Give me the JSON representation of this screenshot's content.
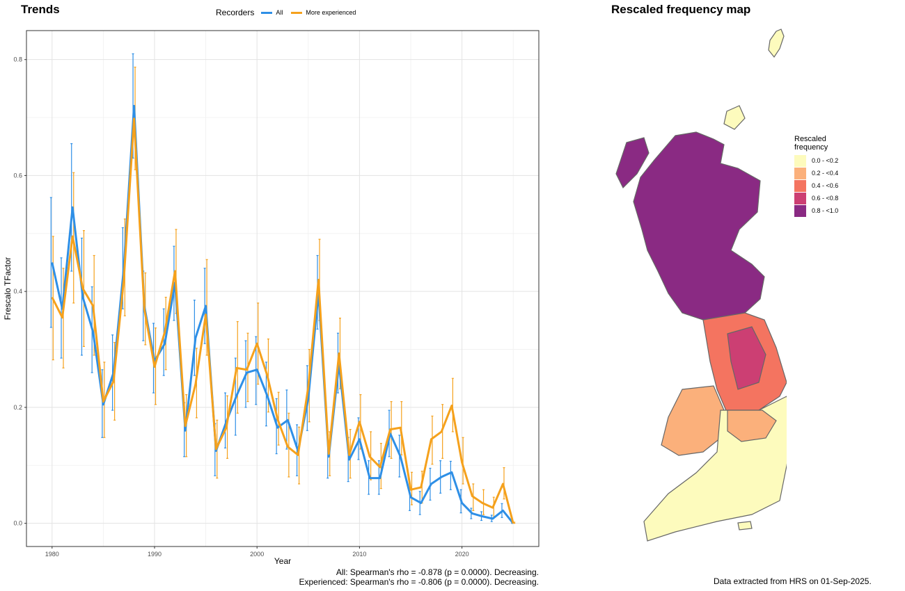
{
  "left_panel": {
    "title": "Trends",
    "legend": {
      "title": "Recorders",
      "items": [
        {
          "label": "All",
          "color": "#2e8fe6"
        },
        {
          "label": "More experienced",
          "color": "#f5a11c"
        }
      ]
    },
    "stats": {
      "line1": "All: Spearman's rho = -0.878 (p = 0.0000). Decreasing.",
      "line2": "Experienced: Spearman's rho = -0.806 (p = 0.0000). Decreasing."
    }
  },
  "right_panel": {
    "title": "Rescaled frequency map",
    "legend_title_line1": "Rescaled",
    "legend_title_line2": "frequency",
    "legend_items": [
      {
        "label": "0.0 - <0.2",
        "color": "#fdfbbd"
      },
      {
        "label": "0.2 - <0.4",
        "color": "#fbb07b"
      },
      {
        "label": "0.4 - <0.6",
        "color": "#f47460"
      },
      {
        "label": "0.6 - <0.8",
        "color": "#cc3f73"
      },
      {
        "label": "0.8 - <1.0",
        "color": "#8a2a83"
      }
    ],
    "footer": "Data extracted from HRS on 01-Sep-2025."
  },
  "chart_data": {
    "type": "line",
    "xlabel": "Year",
    "ylabel": "Frescalo TFactor",
    "xlim": [
      1977.5,
      2027.5
    ],
    "ylim": [
      -0.04,
      0.85
    ],
    "x_ticks": [
      1980,
      1990,
      2000,
      2010,
      2020
    ],
    "y_ticks": [
      0.0,
      0.2,
      0.4,
      0.6,
      0.8
    ],
    "y_tick_labels": [
      "0.0",
      "0.2",
      "0.4",
      "0.6",
      "0.8"
    ],
    "grid": true,
    "legend_position": "top",
    "x": [
      1980,
      1981,
      1982,
      1983,
      1984,
      1985,
      1986,
      1987,
      1988,
      1989,
      1990,
      1991,
      1992,
      1993,
      1994,
      1995,
      1996,
      1997,
      1998,
      1999,
      2000,
      2001,
      2002,
      2003,
      2004,
      2005,
      2006,
      2007,
      2008,
      2009,
      2010,
      2011,
      2012,
      2013,
      2014,
      2015,
      2016,
      2017,
      2018,
      2019,
      2020,
      2021,
      2022,
      2023,
      2024,
      2025
    ],
    "series": [
      {
        "name": "All",
        "color": "#2e8fe6",
        "values": [
          0.45,
          0.37,
          0.545,
          0.39,
          0.33,
          0.205,
          0.26,
          0.44,
          0.72,
          0.375,
          0.28,
          0.31,
          0.415,
          0.16,
          0.32,
          0.375,
          0.125,
          0.175,
          0.22,
          0.26,
          0.265,
          0.22,
          0.165,
          0.178,
          0.125,
          0.215,
          0.398,
          0.115,
          0.275,
          0.11,
          0.145,
          0.078,
          0.078,
          0.155,
          0.115,
          0.045,
          0.035,
          0.068,
          0.08,
          0.088,
          0.035,
          0.017,
          0.012,
          0.008,
          0.022,
          0.0
        ],
        "lower": [
          0.338,
          0.285,
          0.435,
          0.29,
          0.26,
          0.148,
          0.195,
          0.37,
          0.63,
          0.315,
          0.225,
          0.255,
          0.35,
          0.115,
          0.255,
          0.31,
          0.082,
          0.13,
          0.152,
          0.2,
          0.205,
          0.168,
          0.12,
          0.128,
          0.082,
          0.16,
          0.335,
          0.078,
          0.225,
          0.072,
          0.11,
          0.05,
          0.05,
          0.115,
          0.08,
          0.022,
          0.015,
          0.04,
          0.052,
          0.058,
          0.018,
          0.008,
          0.005,
          0.003,
          0.01,
          0.0
        ],
        "upper": [
          0.562,
          0.458,
          0.655,
          0.492,
          0.408,
          0.265,
          0.325,
          0.51,
          0.81,
          0.435,
          0.345,
          0.37,
          0.478,
          0.208,
          0.385,
          0.44,
          0.172,
          0.225,
          0.285,
          0.315,
          0.322,
          0.278,
          0.215,
          0.23,
          0.17,
          0.272,
          0.462,
          0.152,
          0.328,
          0.148,
          0.182,
          0.108,
          0.108,
          0.195,
          0.152,
          0.068,
          0.055,
          0.095,
          0.108,
          0.107,
          0.058,
          0.026,
          0.02,
          0.014,
          0.034,
          0.002
        ]
      },
      {
        "name": "More experienced",
        "color": "#f5a11c",
        "values": [
          0.39,
          0.355,
          0.495,
          0.405,
          0.375,
          0.21,
          0.245,
          0.42,
          0.698,
          0.37,
          0.27,
          0.33,
          0.435,
          0.168,
          0.24,
          0.36,
          0.128,
          0.165,
          0.268,
          0.265,
          0.31,
          0.255,
          0.18,
          0.132,
          0.118,
          0.235,
          0.42,
          0.12,
          0.293,
          0.118,
          0.175,
          0.115,
          0.097,
          0.162,
          0.165,
          0.058,
          0.062,
          0.145,
          0.158,
          0.203,
          0.105,
          0.047,
          0.035,
          0.027,
          0.068,
          0.0
        ],
        "lower": [
          0.282,
          0.268,
          0.38,
          0.305,
          0.29,
          0.148,
          0.178,
          0.358,
          0.61,
          0.308,
          0.205,
          0.265,
          0.362,
          0.115,
          0.182,
          0.29,
          0.078,
          0.112,
          0.19,
          0.21,
          0.24,
          0.192,
          0.135,
          0.08,
          0.068,
          0.175,
          0.35,
          0.082,
          0.232,
          0.078,
          0.128,
          0.075,
          0.06,
          0.112,
          0.118,
          0.032,
          0.035,
          0.102,
          0.112,
          0.158,
          0.068,
          0.022,
          0.015,
          0.01,
          0.042,
          0.0
        ],
        "upper": [
          0.495,
          0.44,
          0.605,
          0.505,
          0.462,
          0.278,
          0.312,
          0.525,
          0.787,
          0.432,
          0.337,
          0.39,
          0.507,
          0.222,
          0.302,
          0.455,
          0.178,
          0.22,
          0.348,
          0.328,
          0.38,
          0.318,
          0.226,
          0.19,
          0.166,
          0.3,
          0.49,
          0.158,
          0.354,
          0.162,
          0.222,
          0.158,
          0.138,
          0.21,
          0.21,
          0.088,
          0.09,
          0.185,
          0.205,
          0.25,
          0.148,
          0.068,
          0.058,
          0.045,
          0.096,
          0.002
        ]
      }
    ]
  }
}
